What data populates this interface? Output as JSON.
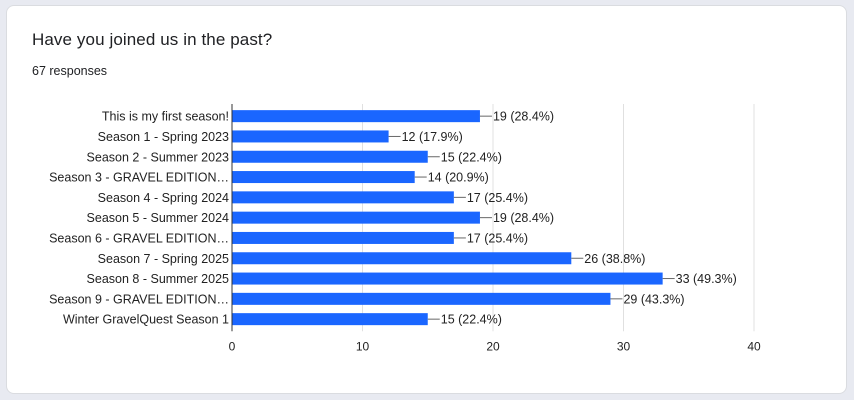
{
  "question": {
    "title": "Have you joined us in the past?",
    "responses": "67 responses"
  },
  "colors": {
    "bar": "#1a66ff",
    "grid": "#e0e0e0",
    "axis": "#333333",
    "text": "#222222"
  },
  "chart_data": {
    "type": "bar",
    "orientation": "horizontal",
    "categories": [
      "This is my first season!",
      "Season 1 - Spring 2023",
      "Season 2 - Summer 2023",
      "Season 3 - GRAVEL EDITION…",
      "Season 4 - Spring 2024",
      "Season 5 - Summer 2024",
      "Season 6 - GRAVEL EDITION…",
      "Season 7 - Spring 2025",
      "Season 8 - Summer 2025",
      "Season 9 - GRAVEL EDITION…",
      "Winter GravelQuest Season 1"
    ],
    "values": [
      19,
      12,
      15,
      14,
      17,
      19,
      17,
      26,
      33,
      29,
      15
    ],
    "data_labels": [
      "19 (28.4%)",
      "12 (17.9%)",
      "15 (22.4%)",
      "14 (20.9%)",
      "17 (25.4%)",
      "19 (28.4%)",
      "17 (25.4%)",
      "26 (38.8%)",
      "33 (49.3%)",
      "29 (43.3%)",
      "15 (22.4%)"
    ],
    "xlim": [
      0,
      40
    ],
    "xticks": [
      0,
      10,
      20,
      30,
      40
    ],
    "grid": true,
    "title": "",
    "xlabel": "",
    "ylabel": ""
  }
}
